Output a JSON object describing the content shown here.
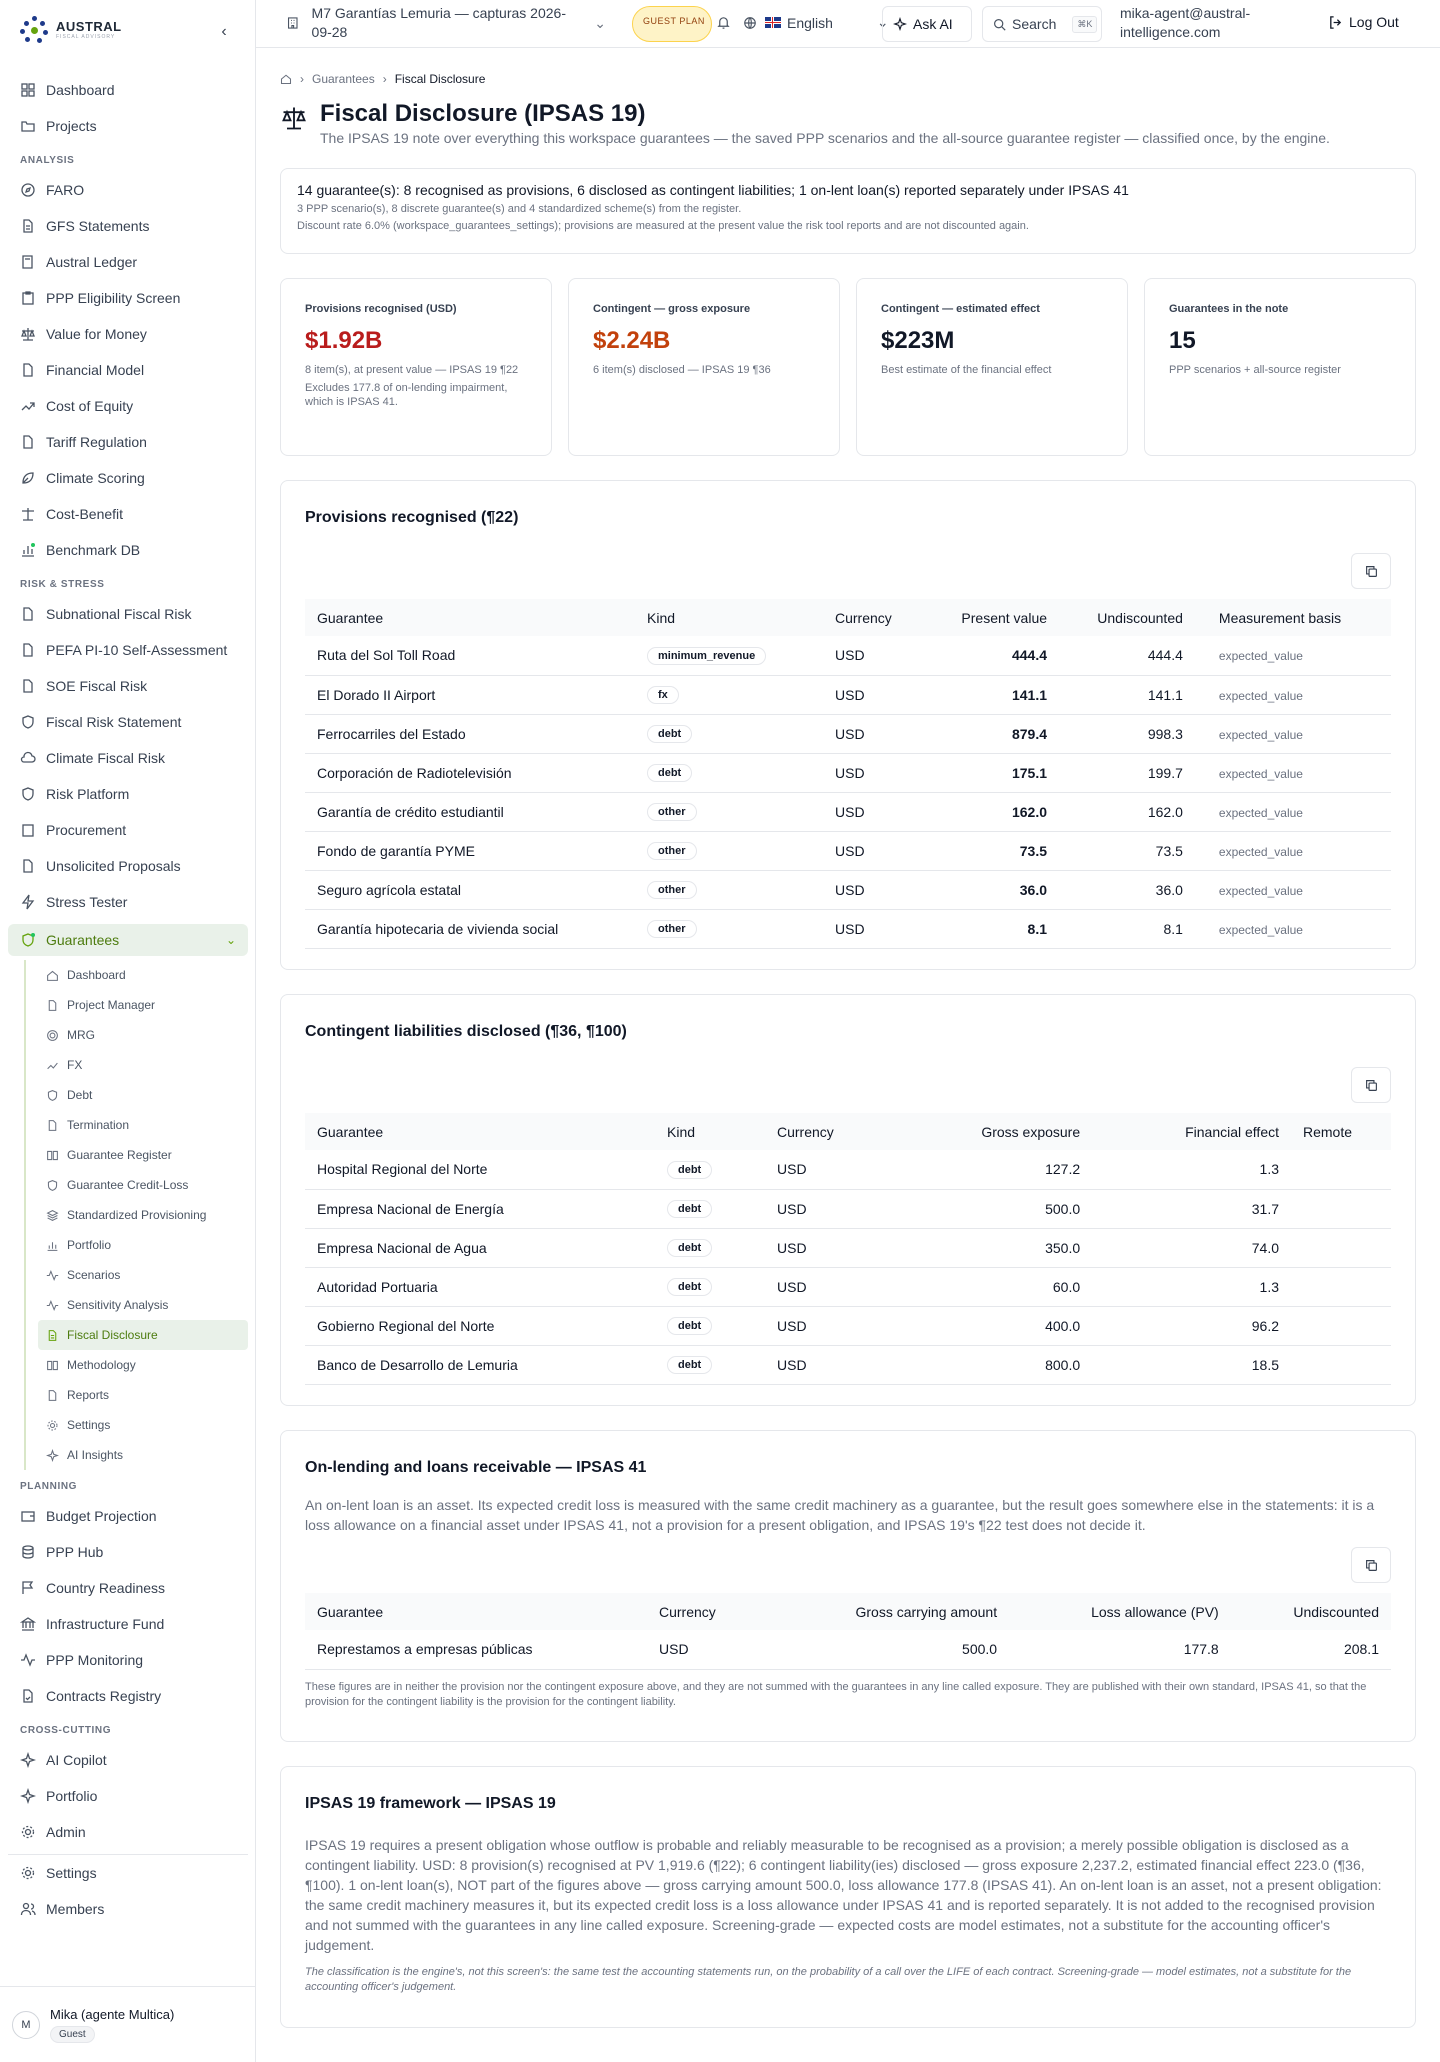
{
  "brand": {
    "name": "AUSTRAL",
    "tagline": "FISCAL ADVISORY"
  },
  "top": {
    "workspace": "M7 Garantías Lemuria — capturas 2026-09-28",
    "plan_badge": "GUEST PLAN",
    "language": "English",
    "ask_ai": "Ask AI",
    "search": "Search",
    "shortcut": "⌘K",
    "email": "mika-agent@austral-intelligence.com",
    "logout": "Log Out"
  },
  "nav": {
    "top": [
      "Dashboard",
      "Projects"
    ],
    "analysis_label": "ANALYSIS",
    "analysis": [
      "FARO",
      "GFS Statements",
      "Austral Ledger",
      "PPP Eligibility Screen",
      "Value for Money",
      "Financial Model",
      "Cost of Equity",
      "Tariff Regulation",
      "Climate Scoring",
      "Cost-Benefit",
      "Benchmark DB"
    ],
    "risk_label": "RISK & STRESS",
    "risk": [
      "Subnational Fiscal Risk",
      "PEFA PI-10 Self-Assessment",
      "SOE Fiscal Risk",
      "Fiscal Risk Statement",
      "Climate Fiscal Risk",
      "Risk Platform",
      "Procurement",
      "Unsolicited Proposals",
      "Stress Tester"
    ],
    "guarantees": "Guarantees",
    "guarantees_sub": [
      "Dashboard",
      "Project Manager",
      "MRG",
      "FX",
      "Debt",
      "Termination",
      "Guarantee Register",
      "Guarantee Credit-Loss",
      "Standardized Provisioning",
      "Portfolio",
      "Scenarios",
      "Sensitivity Analysis",
      "Fiscal Disclosure",
      "Methodology",
      "Reports",
      "Settings",
      "AI Insights"
    ],
    "planning_label": "PLANNING",
    "planning": [
      "Budget Projection",
      "PPP Hub",
      "Country Readiness",
      "Infrastructure Fund",
      "PPP Monitoring",
      "Contracts Registry"
    ],
    "cross_label": "CROSS-CUTTING",
    "cross": [
      "AI Copilot",
      "Portfolio",
      "Admin"
    ],
    "bottom": [
      "Settings",
      "Members"
    ]
  },
  "user": {
    "initial": "M",
    "name": "Mika (agente Multica)",
    "badge": "Guest"
  },
  "breadcrumb": {
    "parent": "Guarantees",
    "current": "Fiscal Disclosure"
  },
  "page": {
    "title": "Fiscal Disclosure (IPSAS 19)",
    "subtitle": "The IPSAS 19 note over everything this workspace guarantees — the saved PPP scenarios and the all-source guarantee register — classified once, by the engine."
  },
  "summary": {
    "line1": "14 guarantee(s): 8 recognised as provisions, 6 disclosed as contingent liabilities; 1 on-lent loan(s) reported separately under IPSAS 41",
    "line2": "3 PPP scenario(s), 8 discrete guarantee(s) and 4 standardized scheme(s) from the register.",
    "line3": "Discount rate 6.0% (workspace_guarantees_settings); provisions are measured at the present value the risk tool reports and are not discounted again."
  },
  "kpis": [
    {
      "label": "Provisions recognised (USD)",
      "value": "$1.92B",
      "color": "#b91c1c",
      "sub1": "8 item(s), at present value — IPSAS 19 ¶22",
      "sub2": "Excludes 177.8 of on-lending impairment, which is IPSAS 41."
    },
    {
      "label": "Contingent — gross exposure",
      "value": "$2.24B",
      "color": "#c2410c",
      "sub1": "6 item(s) disclosed — IPSAS 19 ¶36",
      "sub2": ""
    },
    {
      "label": "Contingent — estimated effect",
      "value": "$223M",
      "color": "#111827",
      "sub1": "Best estimate of the financial effect",
      "sub2": ""
    },
    {
      "label": "Guarantees in the note",
      "value": "15",
      "color": "#111827",
      "sub1": "PPP scenarios + all-source register",
      "sub2": ""
    }
  ],
  "provisions": {
    "title": "Provisions recognised (¶22)",
    "headers": [
      "Guarantee",
      "Kind",
      "Currency",
      "Present value",
      "Undiscounted",
      "Measurement basis"
    ],
    "rows": [
      [
        "Ruta del Sol Toll Road",
        "minimum_revenue",
        "USD",
        "444.4",
        "444.4",
        "expected_value"
      ],
      [
        "El Dorado II Airport",
        "fx",
        "USD",
        "141.1",
        "141.1",
        "expected_value"
      ],
      [
        "Ferrocarriles del Estado",
        "debt",
        "USD",
        "879.4",
        "998.3",
        "expected_value"
      ],
      [
        "Corporación de Radiotelevisión",
        "debt",
        "USD",
        "175.1",
        "199.7",
        "expected_value"
      ],
      [
        "Garantía de crédito estudiantil",
        "other",
        "USD",
        "162.0",
        "162.0",
        "expected_value"
      ],
      [
        "Fondo de garantía PYME",
        "other",
        "USD",
        "73.5",
        "73.5",
        "expected_value"
      ],
      [
        "Seguro agrícola estatal",
        "other",
        "USD",
        "36.0",
        "36.0",
        "expected_value"
      ],
      [
        "Garantía hipotecaria de vivienda social",
        "other",
        "USD",
        "8.1",
        "8.1",
        "expected_value"
      ]
    ]
  },
  "contingent": {
    "title": "Contingent liabilities disclosed (¶36, ¶100)",
    "headers": [
      "Guarantee",
      "Kind",
      "Currency",
      "Gross exposure",
      "Financial effect",
      "Remote"
    ],
    "rows": [
      [
        "Hospital Regional del Norte",
        "debt",
        "USD",
        "127.2",
        "1.3",
        ""
      ],
      [
        "Empresa Nacional de Energía",
        "debt",
        "USD",
        "500.0",
        "31.7",
        ""
      ],
      [
        "Empresa Nacional de Agua",
        "debt",
        "USD",
        "350.0",
        "74.0",
        ""
      ],
      [
        "Autoridad Portuaria",
        "debt",
        "USD",
        "60.0",
        "1.3",
        ""
      ],
      [
        "Gobierno Regional del Norte",
        "debt",
        "USD",
        "400.0",
        "96.2",
        ""
      ],
      [
        "Banco de Desarrollo de Lemuria",
        "debt",
        "USD",
        "800.0",
        "18.5",
        ""
      ]
    ]
  },
  "onlending": {
    "title": "On-lending and loans receivable — IPSAS 41",
    "intro": "An on-lent loan is an asset. Its expected credit loss is measured with the same credit machinery as a guarantee, but the result goes somewhere else in the statements: it is a loss allowance on a financial asset under IPSAS 41, not a provision for a present obligation, and IPSAS 19's ¶22 test does not decide it.",
    "headers": [
      "Guarantee",
      "Currency",
      "Gross carrying amount",
      "Loss allowance (PV)",
      "Undiscounted"
    ],
    "rows": [
      [
        "Represtamos a empresas públicas",
        "USD",
        "500.0",
        "177.8",
        "208.1"
      ]
    ],
    "note": "These figures are in neither the provision nor the contingent exposure above, and they are not summed with the guarantees in any line called exposure. They are published with their own standard, IPSAS 41, so that the provision for the contingent liability is the provision for the contingent liability."
  },
  "framework": {
    "title": "IPSAS 19 framework — IPSAS 19",
    "body": "IPSAS 19 requires a present obligation whose outflow is probable and reliably measurable to be recognised as a provision; a merely possible obligation is disclosed as a contingent liability. USD: 8 provision(s) recognised at PV 1,919.6 (¶22); 6 contingent liability(ies) disclosed — gross exposure 2,237.2, estimated financial effect 223.0 (¶36, ¶100). 1 on-lent loan(s), NOT part of the figures above — gross carrying amount 500.0, loss allowance 177.8 (IPSAS 41). An on-lent loan is an asset, not a present obligation: the same credit machinery measures it, but its expected credit loss is a loss allowance under IPSAS 41 and is reported separately. It is not added to the recognised provision and not summed with the guarantees in any line called exposure. Screening-grade — expected costs are model estimates, not a substitute for the accounting officer's judgement.",
    "note": "The classification is the engine's, not this screen's: the same test the accounting statements run, on the probability of a call over the LIFE of each contract. Screening-grade — model estimates, not a substitute for the accounting officer's judgement."
  }
}
